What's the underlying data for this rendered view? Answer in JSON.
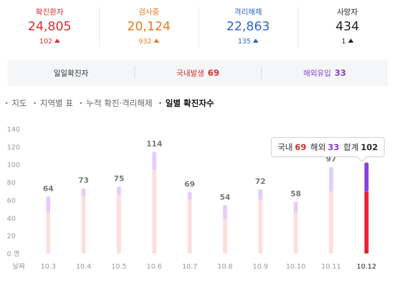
{
  "stats": [
    {
      "label": "확진환자",
      "value": "24,805",
      "delta": "102",
      "color": "#d62f2f"
    },
    {
      "label": "검사중",
      "value": "20,124",
      "delta": "932",
      "color": "#e57c1f"
    },
    {
      "label": "격리해제",
      "value": "22,863",
      "delta": "135",
      "color": "#2f65c8"
    },
    {
      "label": "사망자",
      "value": "434",
      "delta": "1",
      "color": "#222222"
    }
  ],
  "summary": {
    "daily_label": "일일확진자",
    "domestic_label": "국내발생",
    "domestic_value": "69",
    "overseas_label": "해외유입",
    "overseas_value": "33"
  },
  "tabs": [
    {
      "label": "지도",
      "active": false
    },
    {
      "label": "지역별 표",
      "active": false
    },
    {
      "label": "누적 확진·격리해제",
      "active": false
    },
    {
      "label": "일별 확진자수",
      "active": true
    }
  ],
  "tooltip": {
    "domestic_label": "국내",
    "domestic_value": "69",
    "overseas_label": "해외",
    "overseas_value": "33",
    "total_label": "합계",
    "total_value": "102"
  },
  "colors": {
    "domestic": "#ffdede",
    "overseas": "#e5cdf7",
    "domestic_highlight": "#e8222e",
    "overseas_highlight": "#8b3fd6",
    "domestic_text": "#d62f2f",
    "overseas_text": "#8b3fd6"
  },
  "chart_data": {
    "type": "bar",
    "stacked": true,
    "categories": [
      "10.3",
      "10.4",
      "10.5",
      "10.6",
      "10.7",
      "10.8",
      "10.9",
      "10.10",
      "10.11",
      "10.12"
    ],
    "series": [
      {
        "name": "국내",
        "values": [
          46,
          64,
          66,
          94,
          60,
          38,
          60,
          46,
          69,
          69
        ]
      },
      {
        "name": "해외",
        "values": [
          18,
          9,
          9,
          20,
          9,
          16,
          12,
          12,
          28,
          33
        ]
      }
    ],
    "totals": [
      64,
      73,
      75,
      114,
      69,
      54,
      72,
      58,
      97,
      102
    ],
    "data_labels": [
      "64",
      "73",
      "75",
      "114",
      "69",
      "54",
      "72",
      "58",
      "97",
      ""
    ],
    "highlight_index": 9,
    "yticks": [
      "0 명",
      "20",
      "40",
      "60",
      "80",
      "100",
      "120",
      "140"
    ],
    "ytick_values": [
      0,
      20,
      40,
      60,
      80,
      100,
      120,
      140
    ],
    "ylim": [
      0,
      140
    ],
    "xaxis_prefix": "날짜",
    "grid": false,
    "legend": "none"
  }
}
